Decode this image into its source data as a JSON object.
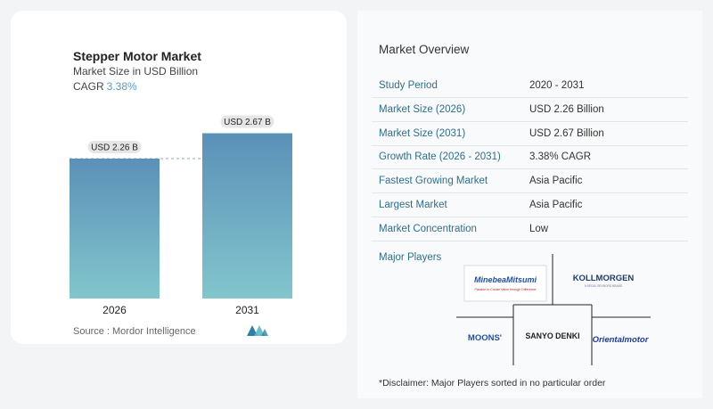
{
  "chart": {
    "title": "Stepper Motor Market",
    "subtitle": "Market Size in USD Billion",
    "cagr_label": "CAGR",
    "cagr_value": "3.38%",
    "source": "Source :  Mordor Intelligence",
    "colors": {
      "bar_top": "#5b90b8",
      "bar_bottom": "#82c6cc",
      "label_bg": "#e6e6e6"
    }
  },
  "chart_data": {
    "type": "bar",
    "categories": [
      "2026",
      "2031"
    ],
    "values": [
      2.26,
      2.67
    ],
    "data_labels": [
      "USD 2.26 B",
      "USD 2.67 B"
    ],
    "title": "Stepper Motor Market",
    "subtitle": "Market Size in USD Billion",
    "xlabel": "",
    "ylabel": "",
    "grid": false,
    "reference_line": 2.26
  },
  "overview": {
    "title": "Market Overview",
    "rows": [
      {
        "label": "Study Period",
        "value": "2020 - 2031"
      },
      {
        "label": "Market Size (2026)",
        "value": "USD 2.26 Billion"
      },
      {
        "label": "Market Size (2031)",
        "value": "USD 2.67 Billion"
      },
      {
        "label": "Growth Rate (2026 - 2031)",
        "value": "3.38% CAGR"
      },
      {
        "label": "Fastest Growing Market",
        "value": "Asia Pacific"
      },
      {
        "label": "Largest Market",
        "value": "Asia Pacific"
      },
      {
        "label": "Market Concentration",
        "value": "Low"
      }
    ]
  },
  "players": {
    "title": "Major Players",
    "logos": [
      "MinebeaMitsumi",
      "KOLLMORGEN",
      "MOONS'",
      "SANYO DENKI",
      "Orientalmotor"
    ],
    "minebea_tagline": "Passion to Create Value through Difference",
    "kollmorgen_tagline": "A REGAL REXNORD BRAND"
  },
  "disclaimer": "*Disclaimer: Major Players sorted in no particular order"
}
